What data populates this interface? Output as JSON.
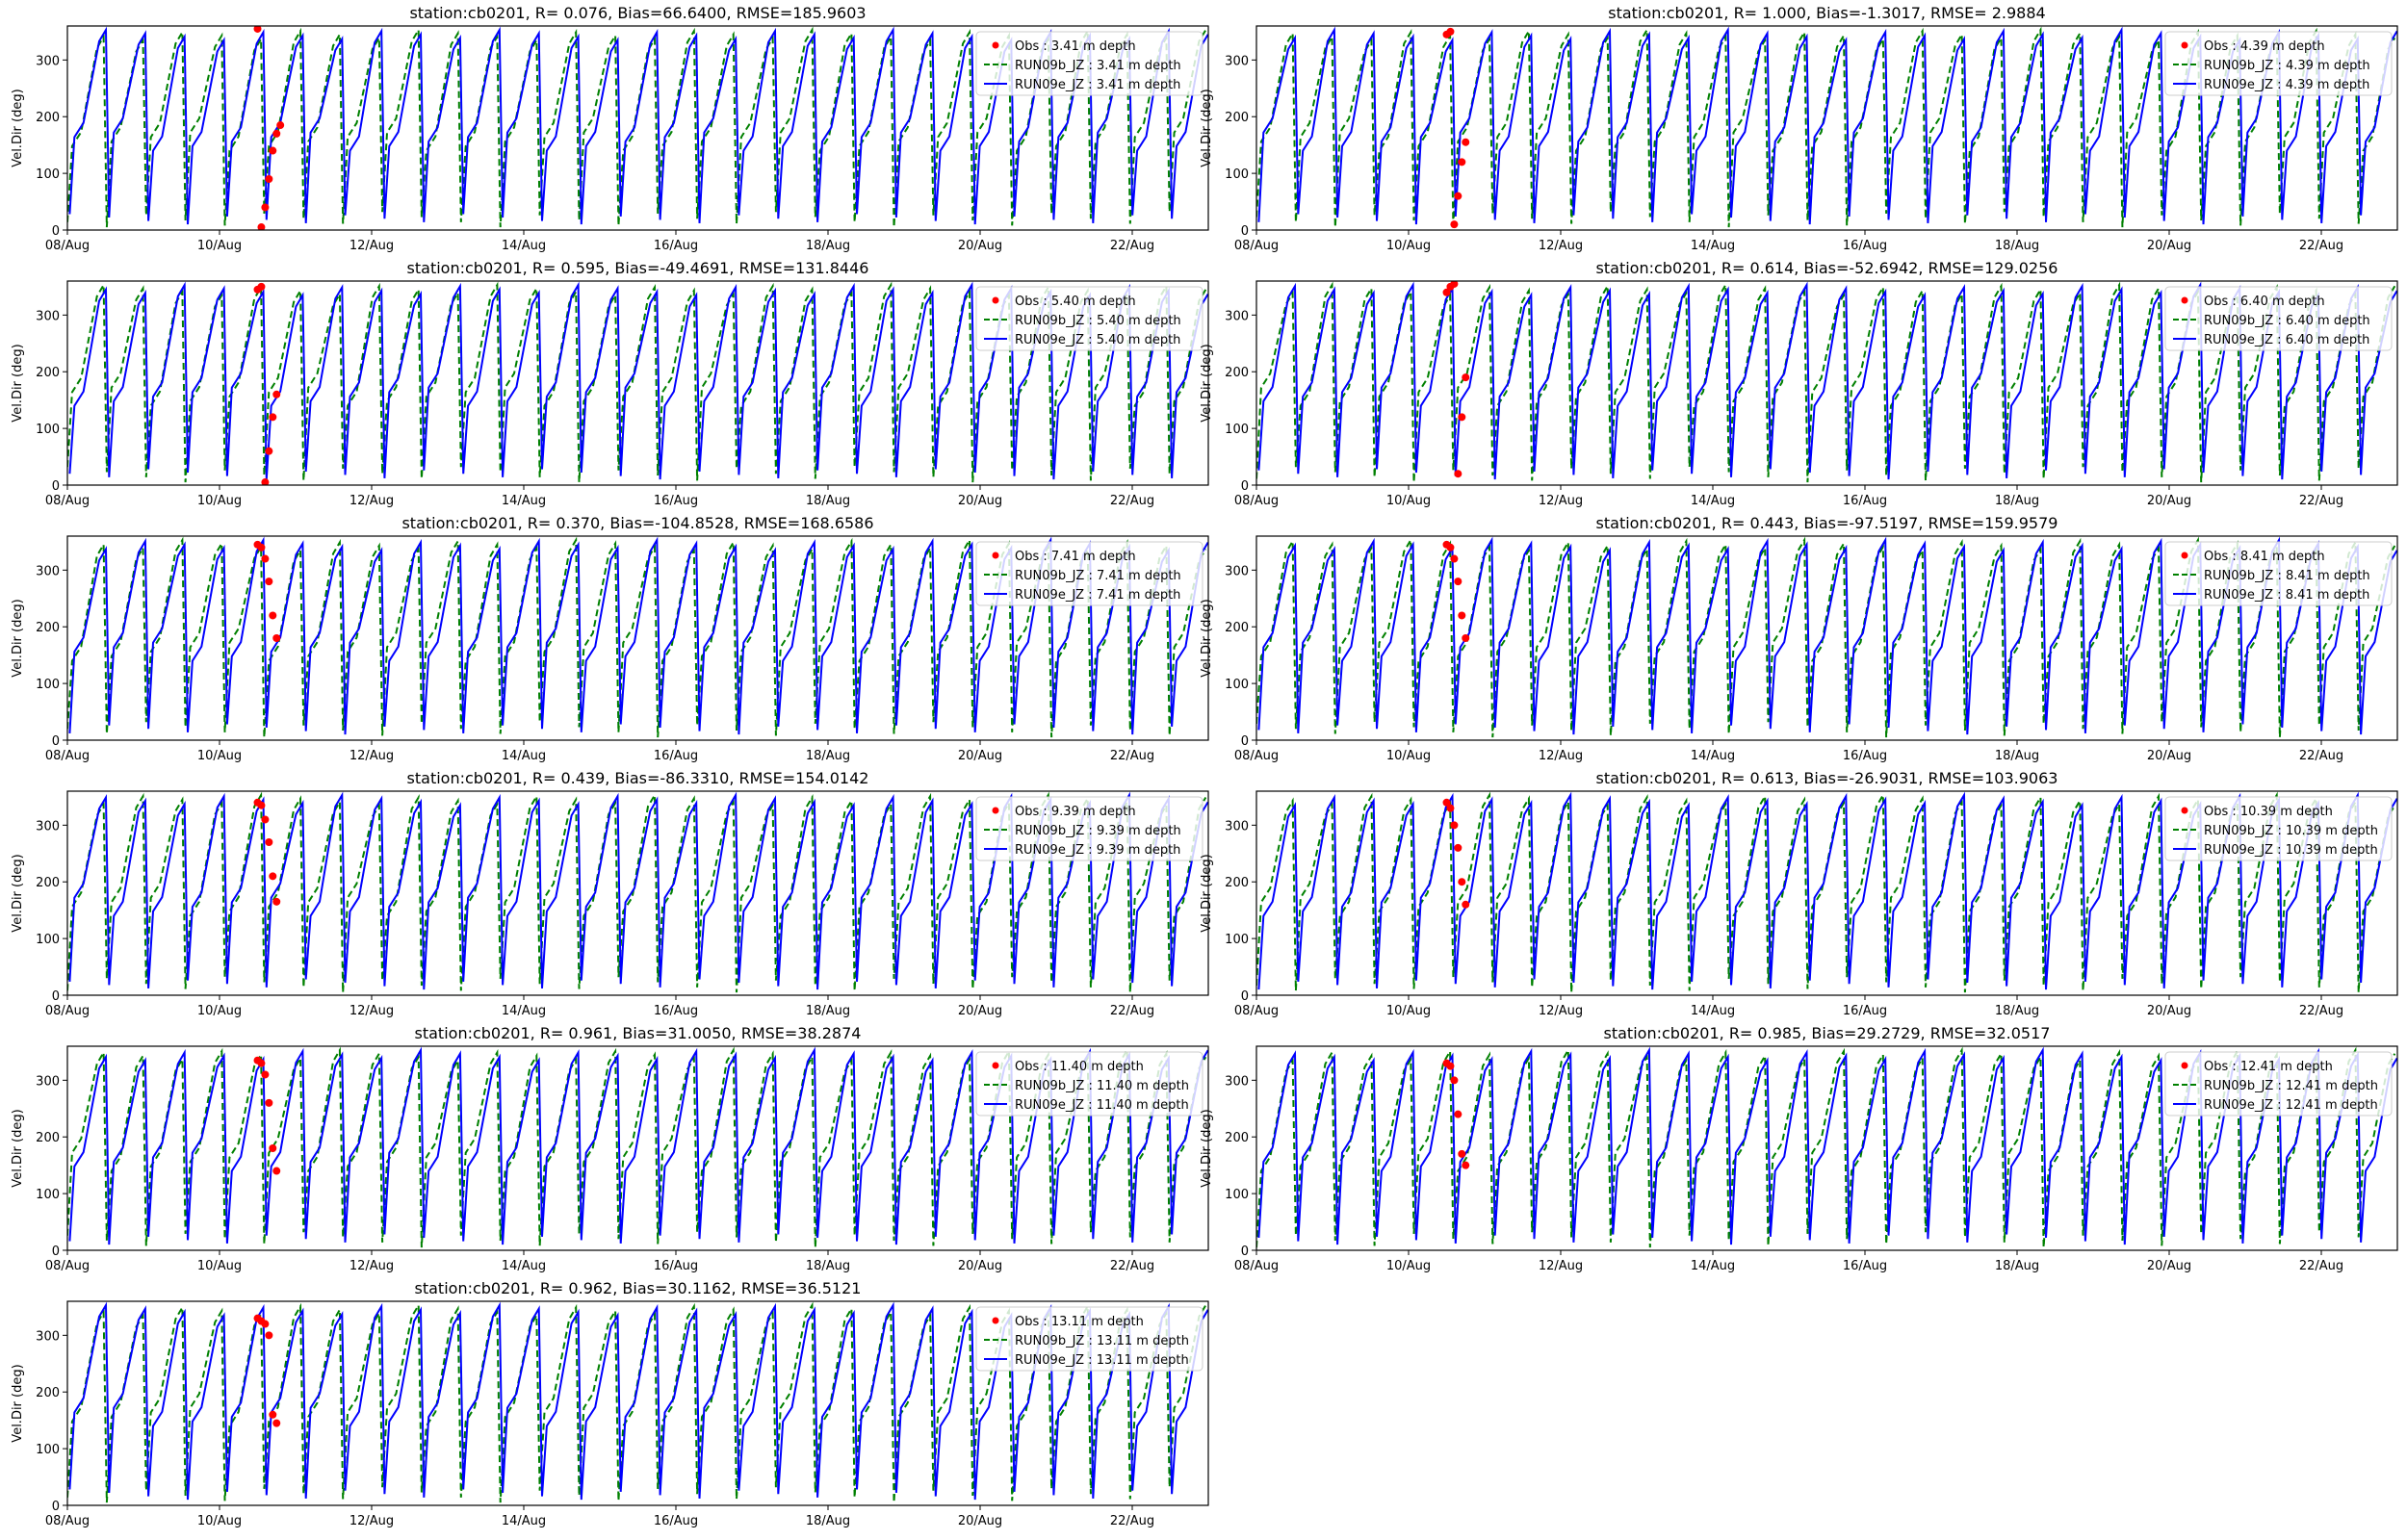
{
  "figure": {
    "ylabel": "Vel.Dir (deg)",
    "x_tick_labels": [
      "08/Aug",
      "10/Aug",
      "12/Aug",
      "14/Aug",
      "16/Aug",
      "18/Aug",
      "20/Aug",
      "22/Aug"
    ],
    "y_tick_labels": [
      "0",
      "100",
      "200",
      "300"
    ]
  },
  "colors": {
    "obs": "#ff0000",
    "run09b": "#008000",
    "run09e": "#0000ff"
  },
  "chart_data": [
    {
      "type": "line",
      "title": "station:cb0201, R= 0.076, Bias=66.6400, RMSE=185.9603",
      "xlabel": "",
      "ylabel": "Vel.Dir (deg)",
      "x_range_days": [
        "2016-08-08",
        "2016-08-23"
      ],
      "ylim": [
        0,
        360
      ],
      "legend_position": "top-right",
      "series": [
        {
          "name": "Obs : 3.41 m depth",
          "style": "red-dots",
          "x_days": [
            10.5,
            10.55,
            10.6,
            10.65,
            10.7,
            10.75,
            10.8
          ],
          "values": [
            355,
            5,
            40,
            90,
            140,
            170,
            185
          ]
        },
        {
          "name": "RUN09b_JZ : 3.41 m depth",
          "style": "green-dashed"
        },
        {
          "name": "RUN09e_JZ : 3.41 m depth",
          "style": "blue-solid"
        }
      ]
    },
    {
      "type": "line",
      "title": "station:cb0201, R= 1.000, Bias=-1.3017, RMSE= 2.9884",
      "xlabel": "",
      "ylabel": "Vel.Dir (deg)",
      "x_range_days": [
        "2016-08-08",
        "2016-08-23"
      ],
      "ylim": [
        0,
        360
      ],
      "legend_position": "top-right",
      "series": [
        {
          "name": "Obs : 4.39 m depth",
          "style": "red-dots",
          "x_days": [
            10.5,
            10.55,
            10.6,
            10.65,
            10.7,
            10.75
          ],
          "values": [
            345,
            350,
            10,
            60,
            120,
            155
          ]
        },
        {
          "name": "RUN09b_JZ : 4.39 m depth",
          "style": "green-dashed"
        },
        {
          "name": "RUN09e_JZ : 4.39 m depth",
          "style": "blue-solid"
        }
      ]
    },
    {
      "type": "line",
      "title": "station:cb0201, R= 0.595, Bias=-49.4691, RMSE=131.8446",
      "xlabel": "",
      "ylabel": "Vel.Dir (deg)",
      "x_range_days": [
        "2016-08-08",
        "2016-08-23"
      ],
      "ylim": [
        0,
        360
      ],
      "legend_position": "top-right",
      "series": [
        {
          "name": "Obs : 5.40 m depth",
          "style": "red-dots",
          "x_days": [
            10.5,
            10.55,
            10.6,
            10.65,
            10.7,
            10.75
          ],
          "values": [
            345,
            350,
            5,
            60,
            120,
            160
          ]
        },
        {
          "name": "RUN09b_JZ : 5.40 m depth",
          "style": "green-dashed"
        },
        {
          "name": "RUN09e_JZ : 5.40 m depth",
          "style": "blue-solid"
        }
      ]
    },
    {
      "type": "line",
      "title": "station:cb0201, R= 0.614, Bias=-52.6942, RMSE=129.0256",
      "xlabel": "",
      "ylabel": "Vel.Dir (deg)",
      "x_range_days": [
        "2016-08-08",
        "2016-08-23"
      ],
      "ylim": [
        0,
        360
      ],
      "legend_position": "top-right",
      "series": [
        {
          "name": "Obs : 6.40 m depth",
          "style": "red-dots",
          "x_days": [
            10.5,
            10.55,
            10.6,
            10.65,
            10.7,
            10.75
          ],
          "values": [
            340,
            350,
            355,
            20,
            120,
            190
          ]
        },
        {
          "name": "RUN09b_JZ : 6.40 m depth",
          "style": "green-dashed"
        },
        {
          "name": "RUN09e_JZ : 6.40 m depth",
          "style": "blue-solid"
        }
      ]
    },
    {
      "type": "line",
      "title": "station:cb0201, R= 0.370, Bias=-104.8528, RMSE=168.6586",
      "xlabel": "",
      "ylabel": "Vel.Dir (deg)",
      "x_range_days": [
        "2016-08-08",
        "2016-08-23"
      ],
      "ylim": [
        0,
        360
      ],
      "legend_position": "top-right",
      "series": [
        {
          "name": "Obs : 7.41 m depth",
          "style": "red-dots",
          "x_days": [
            10.5,
            10.55,
            10.6,
            10.65,
            10.7,
            10.75
          ],
          "values": [
            345,
            340,
            320,
            280,
            220,
            180
          ]
        },
        {
          "name": "RUN09b_JZ : 7.41 m depth",
          "style": "green-dashed"
        },
        {
          "name": "RUN09e_JZ : 7.41 m depth",
          "style": "blue-solid"
        }
      ]
    },
    {
      "type": "line",
      "title": "station:cb0201, R= 0.443, Bias=-97.5197, RMSE=159.9579",
      "xlabel": "",
      "ylabel": "Vel.Dir (deg)",
      "x_range_days": [
        "2016-08-08",
        "2016-08-23"
      ],
      "ylim": [
        0,
        360
      ],
      "legend_position": "top-right",
      "series": [
        {
          "name": "Obs : 8.41 m depth",
          "style": "red-dots",
          "x_days": [
            10.5,
            10.55,
            10.6,
            10.65,
            10.7,
            10.75
          ],
          "values": [
            345,
            340,
            320,
            280,
            220,
            180
          ]
        },
        {
          "name": "RUN09b_JZ : 8.41 m depth",
          "style": "green-dashed"
        },
        {
          "name": "RUN09e_JZ : 8.41 m depth",
          "style": "blue-solid"
        }
      ]
    },
    {
      "type": "line",
      "title": "station:cb0201, R= 0.439, Bias=-86.3310, RMSE=154.0142",
      "xlabel": "",
      "ylabel": "Vel.Dir (deg)",
      "x_range_days": [
        "2016-08-08",
        "2016-08-23"
      ],
      "ylim": [
        0,
        360
      ],
      "legend_position": "top-right",
      "series": [
        {
          "name": "Obs : 9.39 m depth",
          "style": "red-dots",
          "x_days": [
            10.5,
            10.55,
            10.6,
            10.65,
            10.7,
            10.75
          ],
          "values": [
            340,
            335,
            310,
            270,
            210,
            165
          ]
        },
        {
          "name": "RUN09b_JZ : 9.39 m depth",
          "style": "green-dashed"
        },
        {
          "name": "RUN09e_JZ : 9.39 m depth",
          "style": "blue-solid"
        }
      ]
    },
    {
      "type": "line",
      "title": "station:cb0201, R= 0.613, Bias=-26.9031, RMSE=103.9063",
      "xlabel": "",
      "ylabel": "Vel.Dir (deg)",
      "x_range_days": [
        "2016-08-08",
        "2016-08-23"
      ],
      "ylim": [
        0,
        360
      ],
      "legend_position": "top-right",
      "series": [
        {
          "name": "Obs : 10.39 m depth",
          "style": "red-dots",
          "x_days": [
            10.5,
            10.55,
            10.6,
            10.65,
            10.7,
            10.75
          ],
          "values": [
            340,
            330,
            300,
            260,
            200,
            160
          ]
        },
        {
          "name": "RUN09b_JZ : 10.39 m depth",
          "style": "green-dashed"
        },
        {
          "name": "RUN09e_JZ : 10.39 m depth",
          "style": "blue-solid"
        }
      ]
    },
    {
      "type": "line",
      "title": "station:cb0201, R= 0.961, Bias=31.0050, RMSE=38.2874",
      "xlabel": "",
      "ylabel": "Vel.Dir (deg)",
      "x_range_days": [
        "2016-08-08",
        "2016-08-23"
      ],
      "ylim": [
        0,
        360
      ],
      "legend_position": "top-right",
      "series": [
        {
          "name": "Obs : 11.40 m depth",
          "style": "red-dots",
          "x_days": [
            10.5,
            10.55,
            10.6,
            10.65,
            10.7,
            10.75
          ],
          "values": [
            335,
            330,
            310,
            260,
            180,
            140
          ]
        },
        {
          "name": "RUN09b_JZ : 11.40 m depth",
          "style": "green-dashed"
        },
        {
          "name": "RUN09e_JZ : 11.40 m depth",
          "style": "blue-solid"
        }
      ]
    },
    {
      "type": "line",
      "title": "station:cb0201, R= 0.985, Bias=29.2729, RMSE=32.0517",
      "xlabel": "",
      "ylabel": "Vel.Dir (deg)",
      "x_range_days": [
        "2016-08-08",
        "2016-08-23"
      ],
      "ylim": [
        0,
        360
      ],
      "legend_position": "top-right",
      "series": [
        {
          "name": "Obs : 12.41 m depth",
          "style": "red-dots",
          "x_days": [
            10.5,
            10.55,
            10.6,
            10.65,
            10.7,
            10.75
          ],
          "values": [
            330,
            325,
            300,
            240,
            170,
            150
          ]
        },
        {
          "name": "RUN09b_JZ : 12.41 m depth",
          "style": "green-dashed"
        },
        {
          "name": "RUN09e_JZ : 12.41 m depth",
          "style": "blue-solid"
        }
      ]
    },
    {
      "type": "line",
      "title": "station:cb0201, R= 0.962, Bias=30.1162, RMSE=36.5121",
      "xlabel": "",
      "ylabel": "Vel.Dir (deg)",
      "x_range_days": [
        "2016-08-08",
        "2016-08-23"
      ],
      "ylim": [
        0,
        360
      ],
      "legend_position": "top-right",
      "series": [
        {
          "name": "Obs : 13.11 m depth",
          "style": "red-dots",
          "x_days": [
            10.5,
            10.55,
            10.6,
            10.65,
            10.7,
            10.75
          ],
          "values": [
            330,
            325,
            320,
            300,
            160,
            145
          ]
        },
        {
          "name": "RUN09b_JZ : 13.11 m depth",
          "style": "green-dashed"
        },
        {
          "name": "RUN09e_JZ : 13.11 m depth",
          "style": "blue-solid"
        }
      ]
    }
  ]
}
